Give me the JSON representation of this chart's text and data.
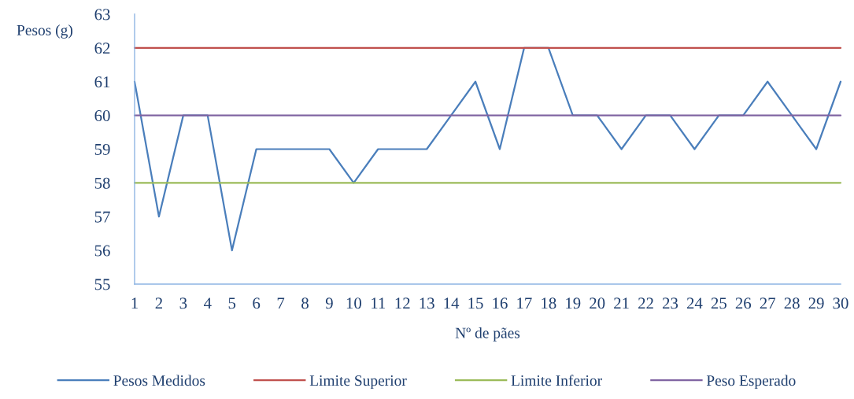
{
  "chart_data": {
    "type": "line",
    "x": [
      1,
      2,
      3,
      4,
      5,
      6,
      7,
      8,
      9,
      10,
      11,
      12,
      13,
      14,
      15,
      16,
      17,
      18,
      19,
      20,
      21,
      22,
      23,
      24,
      25,
      26,
      27,
      28,
      29,
      30
    ],
    "xlabel": "Nº de pães",
    "ylabel": "Pesos (g)",
    "xlim": [
      1,
      30
    ],
    "xticks": [
      1,
      2,
      3,
      4,
      5,
      6,
      7,
      8,
      9,
      10,
      11,
      12,
      13,
      14,
      15,
      16,
      17,
      18,
      19,
      20,
      21,
      22,
      23,
      24,
      25,
      26,
      27,
      28,
      29,
      30
    ],
    "ylim": [
      55,
      63
    ],
    "yticks": [
      55,
      56,
      57,
      58,
      59,
      60,
      61,
      62,
      63
    ],
    "series": [
      {
        "name": "Pesos Medidos",
        "color": "#4a7ebb",
        "values": [
          61,
          57,
          60,
          60,
          56,
          59,
          59,
          59,
          59,
          58,
          59,
          59,
          59,
          60,
          61,
          59,
          62,
          62,
          60,
          60,
          59,
          60,
          60,
          59,
          60,
          60,
          61,
          60,
          59,
          61
        ]
      },
      {
        "name": "Limite Superior",
        "color": "#c0504d",
        "values": [
          62,
          62,
          62,
          62,
          62,
          62,
          62,
          62,
          62,
          62,
          62,
          62,
          62,
          62,
          62,
          62,
          62,
          62,
          62,
          62,
          62,
          62,
          62,
          62,
          62,
          62,
          62,
          62,
          62,
          62
        ]
      },
      {
        "name": "Limite Inferior",
        "color": "#9bbb59",
        "values": [
          58,
          58,
          58,
          58,
          58,
          58,
          58,
          58,
          58,
          58,
          58,
          58,
          58,
          58,
          58,
          58,
          58,
          58,
          58,
          58,
          58,
          58,
          58,
          58,
          58,
          58,
          58,
          58,
          58,
          58
        ]
      },
      {
        "name": "Peso Esperado",
        "color": "#8064a2",
        "values": [
          60,
          60,
          60,
          60,
          60,
          60,
          60,
          60,
          60,
          60,
          60,
          60,
          60,
          60,
          60,
          60,
          60,
          60,
          60,
          60,
          60,
          60,
          60,
          60,
          60,
          60,
          60,
          60,
          60,
          60
        ]
      }
    ],
    "legend": "bottom",
    "grid": false,
    "marker": "none",
    "line_style": "solid"
  }
}
